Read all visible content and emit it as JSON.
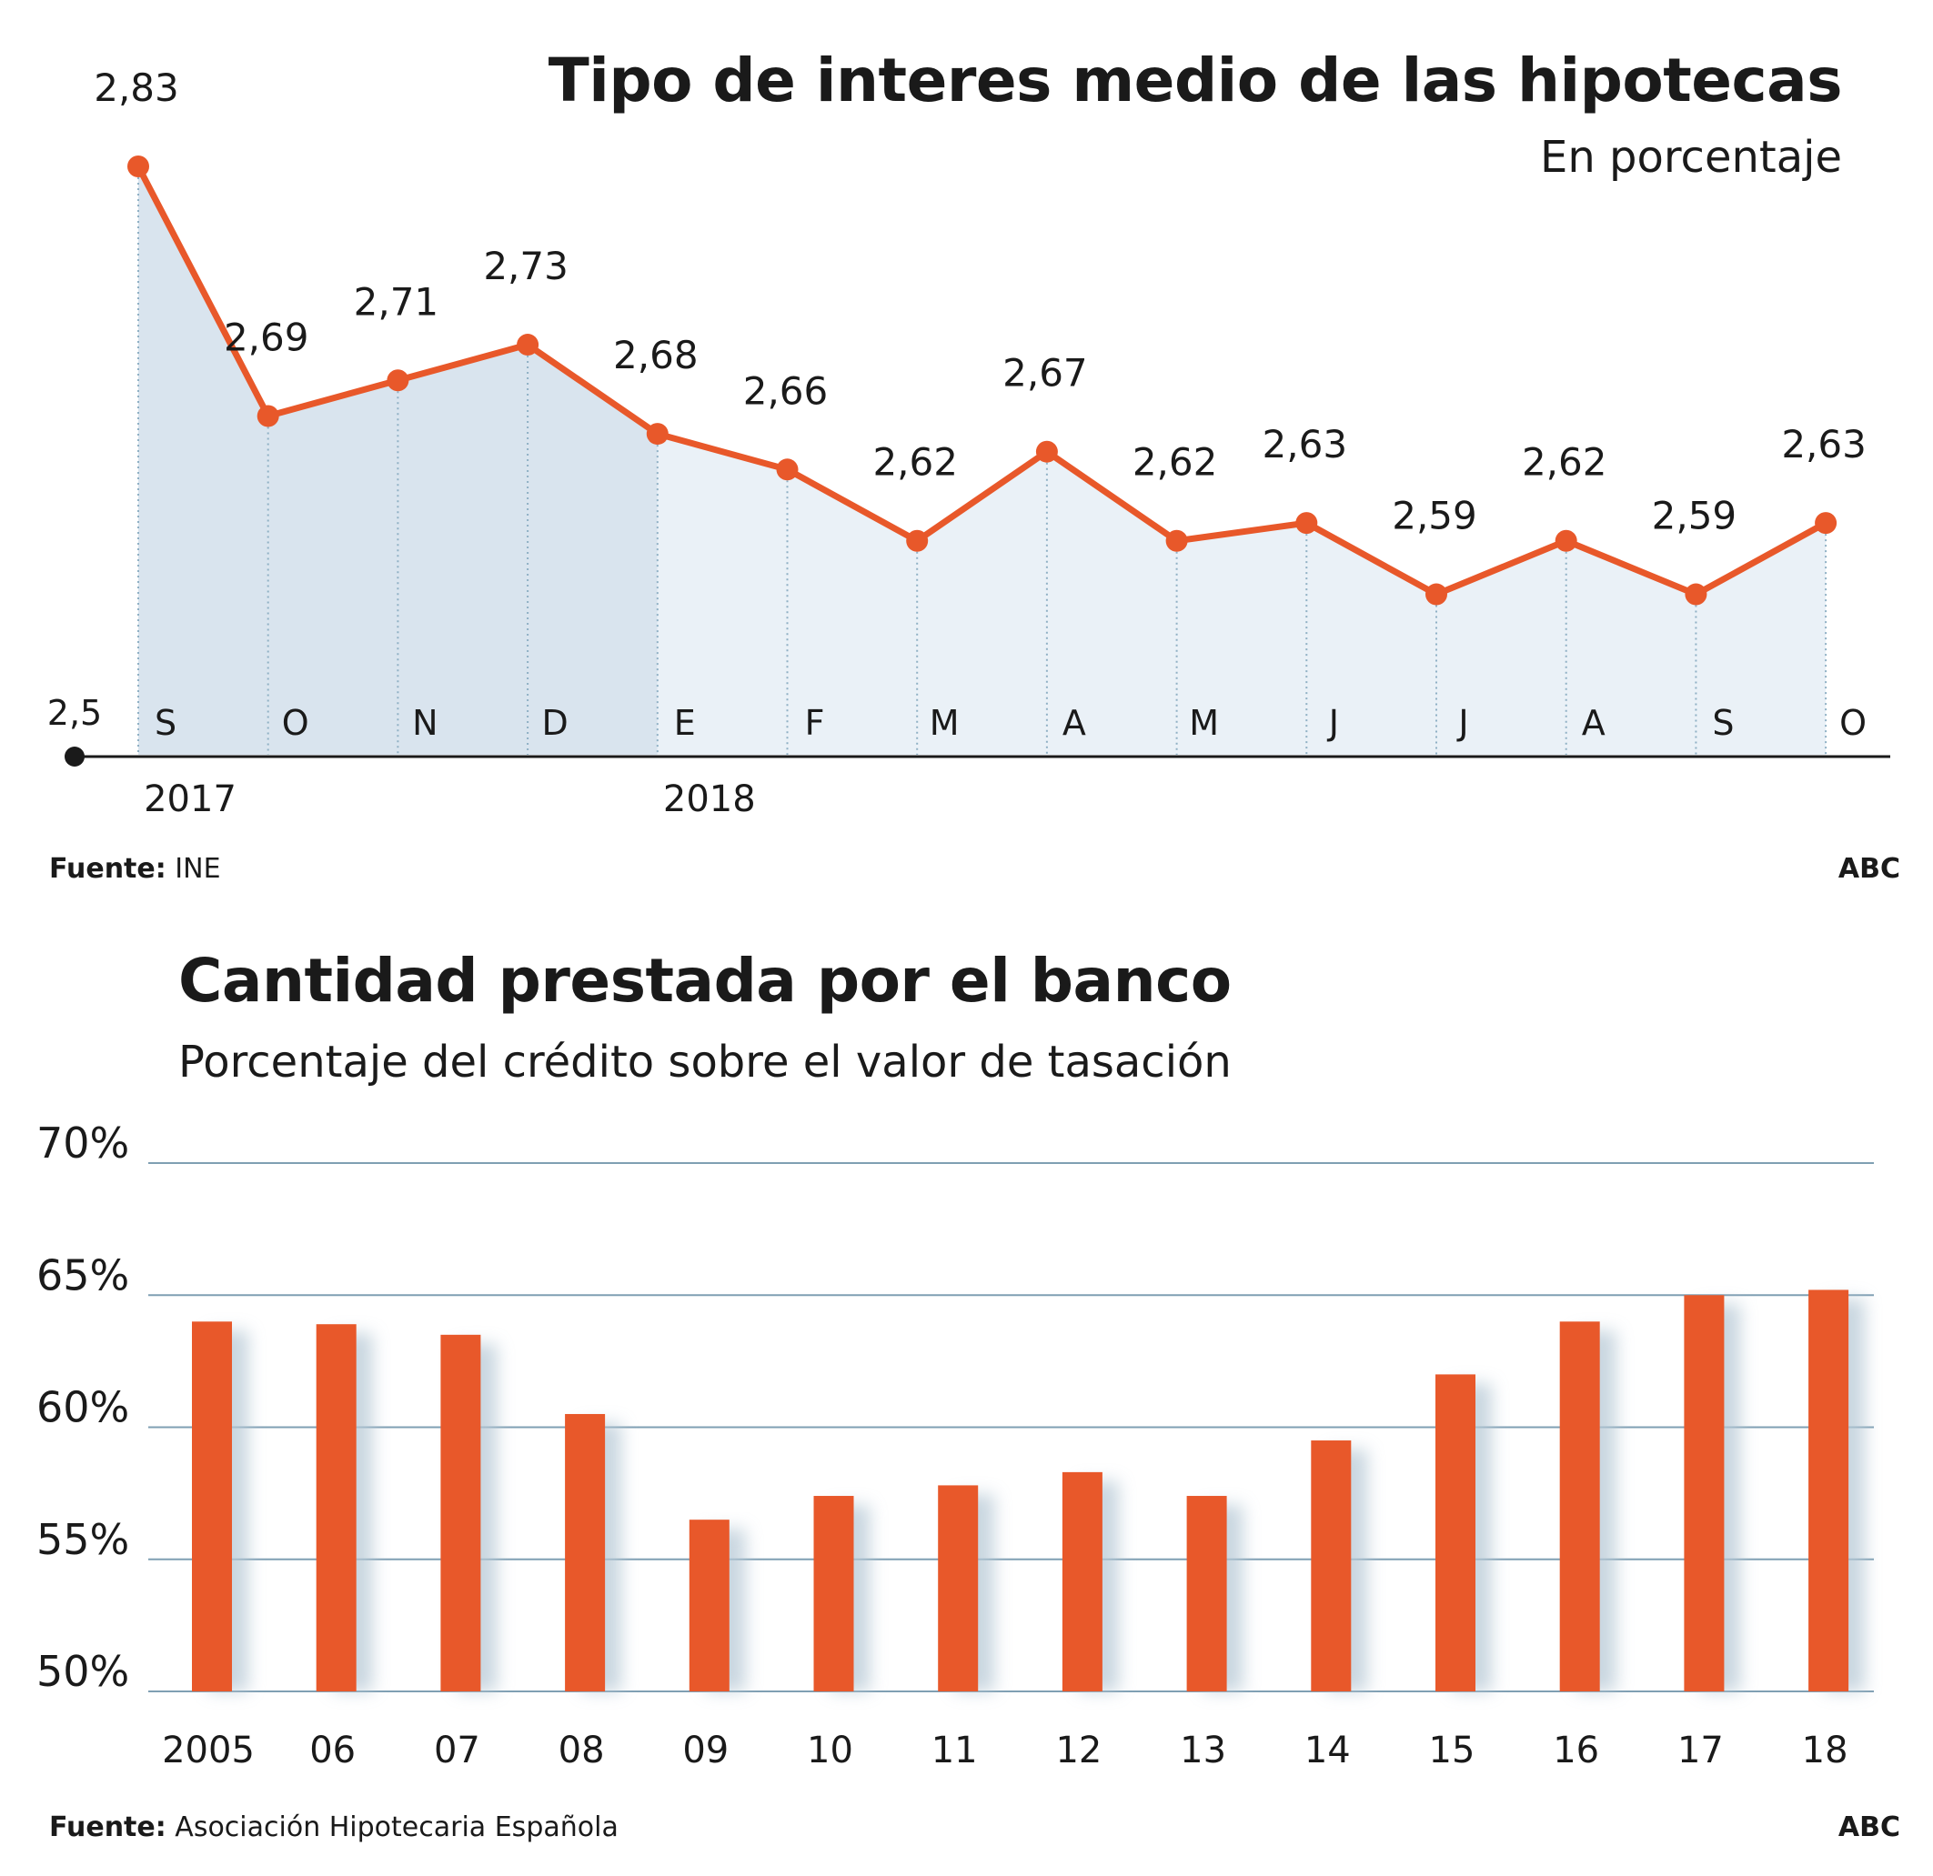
{
  "chart_data": [
    {
      "type": "line",
      "title": "Tipo de interes medio de las hipotecas",
      "subtitle": "En porcentaje",
      "x": [
        "S",
        "O",
        "N",
        "D",
        "E",
        "F",
        "M",
        "A",
        "M",
        "J",
        "J",
        "A",
        "S",
        "O"
      ],
      "year_labels": [
        {
          "index": 0,
          "label": "2017"
        },
        {
          "index": 4,
          "label": "2018"
        }
      ],
      "series": [
        {
          "values": [
            2.83,
            2.69,
            2.71,
            2.73,
            2.68,
            2.66,
            2.62,
            2.67,
            2.62,
            2.63,
            2.59,
            2.62,
            2.59,
            2.63
          ],
          "labels": [
            "2,83",
            "2,69",
            "2,71",
            "2,73",
            "2,68",
            "2,66",
            "2,62",
            "2,67",
            "2,62",
            "2,63",
            "2,59",
            "2,62",
            "2,59",
            "2,63"
          ]
        }
      ],
      "ylim": [
        2.5,
        2.83
      ],
      "baseline_label": "2,5",
      "source_label": "Fuente:",
      "source": "INE",
      "brand": "ABC",
      "colors": {
        "line": "#e8582a",
        "area_2017": "#d9e4ee",
        "area_2018": "#eaf1f7"
      }
    },
    {
      "type": "bar",
      "title": "Cantidad prestada por el banco",
      "subtitle": "Porcentaje del crédito sobre el valor de tasación",
      "categories": [
        "2005",
        "06",
        "07",
        "08",
        "09",
        "10",
        "11",
        "12",
        "13",
        "14",
        "15",
        "16",
        "17",
        "18"
      ],
      "values": [
        64.0,
        63.9,
        63.5,
        60.5,
        56.5,
        57.4,
        57.8,
        58.3,
        57.4,
        59.5,
        62.0,
        64.0,
        65.0,
        65.2
      ],
      "ylim": [
        50,
        70
      ],
      "yticks": [
        "50%",
        "55%",
        "60%",
        "65%",
        "70%"
      ],
      "grid": true,
      "source_label": "Fuente:",
      "source": "Asociación Hipotecaria Española",
      "brand": "ABC",
      "colors": {
        "bar": "#e8582a",
        "grid": "#7f9fb3"
      }
    }
  ]
}
